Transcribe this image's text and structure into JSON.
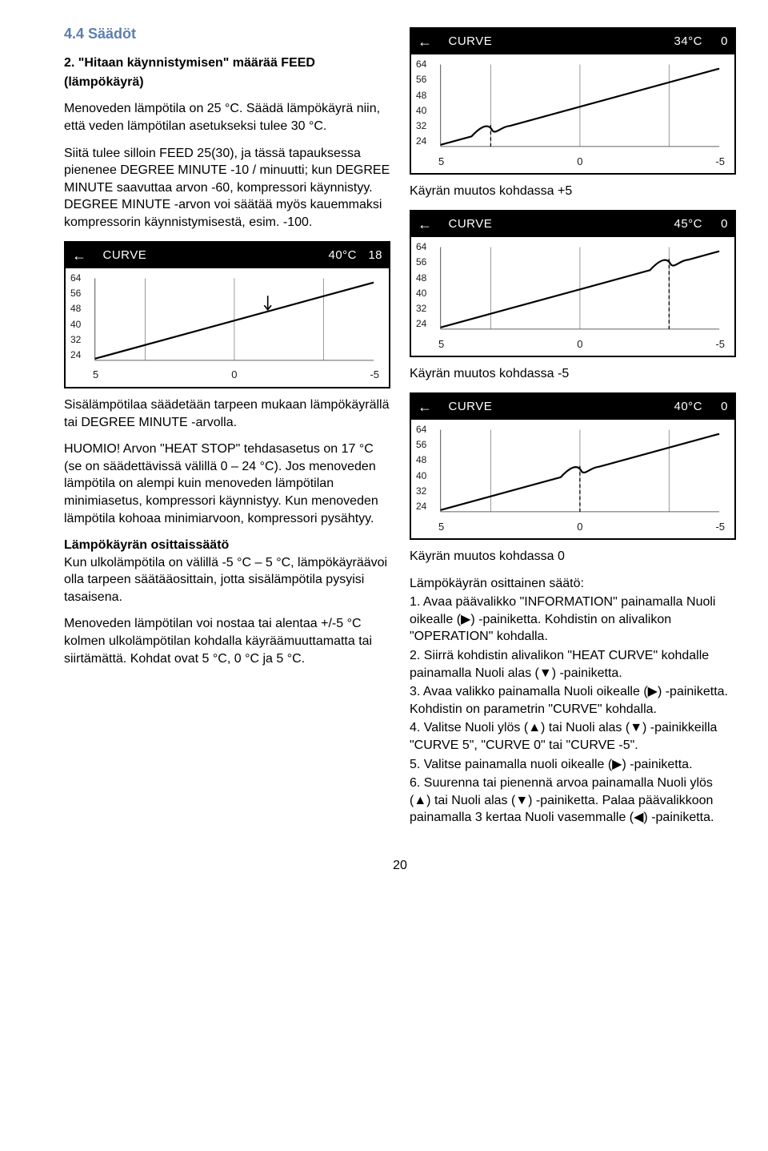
{
  "heading": "4.4 Säädöt",
  "left": {
    "subtitle1": "2. \"Hitaan käynnistymisen\" määrää FEED",
    "subtitle2": "(lämpökäyrä)",
    "p1": "Menoveden lämpötila on 25 °C. Säädä lämpökäyrä niin, että veden lämpötilan asetukseksi tulee 30 °C.",
    "p2": "Siitä tulee silloin FEED 25(30), ja tässä tapauksessa pienenee DEGREE MINUTE -10 / minuutti; kun DEGREE MINUTE saavuttaa arvon -60, kompressori käynnistyy. DEGREE MINUTE -arvon voi säätää myös kauemmaksi kompressorin käynnistymisestä, esim. -100.",
    "p3": "Sisälämpötilaa säädetään tarpeen mukaan lämpökäyrällä tai DEGREE MINUTE -arvolla.",
    "p4": "HUOMIO! Arvon \"HEAT STOP\" tehdasasetus on 17 °C (se on säädettävissä välillä 0 – 24 °C). Jos menoveden lämpötila on alempi kuin menoveden lämpötilan minimiasetus, kompressori käynnistyy. Kun menoveden lämpötila kohoaa minimiarvoon, kompressori pysähtyy.",
    "sub2": "Lämpökäyrän osittaissäätö",
    "p5": "Kun ulkolämpötila on välillä -5 °C – 5 °C, lämpökäyräävoi olla tarpeen säätääosittain, jotta sisälämpötila pysyisi tasaisena.",
    "p6": "Menoveden lämpötilan voi nostaa tai alentaa +/-5 °C kolmen ulkolämpötilan kohdalla käyräämuuttamatta tai siirtämättä. Kohdat ovat 5 °C, 0 °C ja 5 °C."
  },
  "right": {
    "cap1": "Käyrän muutos kohdassa +5",
    "cap2": "Käyrän muutos kohdassa -5",
    "cap3": "Käyrän muutos kohdassa 0",
    "sub": "Lämpökäyrän osittainen säätö:",
    "s1": "1. Avaa päävalikko \"INFORMATION\" painamalla Nuoli oikealle (▶) -painiketta. Kohdistin on alivalikon \"OPERATION\" kohdalla.",
    "s2": "2. Siirrä kohdistin alivalikon \"HEAT CURVE\" kohdalle painamalla Nuoli alas (▼) -painiketta.",
    "s3": "3. Avaa valikko painamalla Nuoli oikealle (▶) -painiketta. Kohdistin on parametrin \"CURVE\" kohdalla.",
    "s4": "4. Valitse Nuoli ylös (▲) tai Nuoli alas (▼) -painikkeilla \"CURVE 5\", \"CURVE 0\" tai \"CURVE -5\".",
    "s5": "5. Valitse painamalla nuoli oikealle (▶) -painiketta.",
    "s6": "6. Suurenna tai pienennä arvoa painamalla Nuoli ylös (▲) tai Nuoli alas (▼) -painiketta. Palaa päävalikkoon painamalla 3 kertaa Nuoli vasemmalle (◀) -painiketta."
  },
  "charts": {
    "y_labels": [
      "64",
      "56",
      "48",
      "40",
      "32",
      "24"
    ],
    "x_labels": [
      "5",
      "0",
      "-5"
    ],
    "grid_color": "#8a8a8a",
    "line_color": "#000000",
    "axis_color": "#606060",
    "dash_color": "#000000",
    "c_left": {
      "title": "CURVE",
      "temp": "40°C",
      "val": "18",
      "bump_at": -1
    },
    "c1": {
      "title": "CURVE",
      "temp": "34°C",
      "val": "0",
      "bump_at": 0
    },
    "c2": {
      "title": "CURVE",
      "temp": "45°C",
      "val": "0",
      "bump_at": 2
    },
    "c3": {
      "title": "CURVE",
      "temp": "40°C",
      "val": "0",
      "bump_at": 1
    }
  },
  "page_number": "20"
}
